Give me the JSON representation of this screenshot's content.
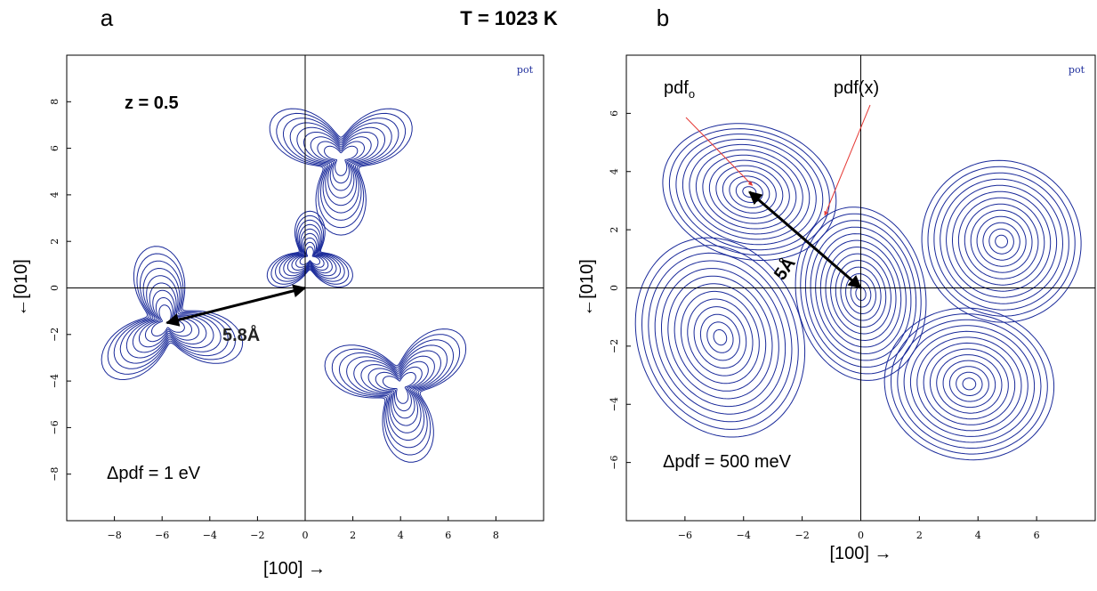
{
  "title": "T = 1023 K",
  "chart_data": [
    {
      "type": "contour",
      "panel": "a",
      "corner_label": "pot",
      "annotations": [
        "z = 0.5",
        "Δpdf = 1 eV",
        "5.8Å"
      ],
      "xlabel": "[100] →",
      "ylabel": "←[010]",
      "xlim": [
        -10,
        10
      ],
      "ylim": [
        -10,
        10
      ],
      "xticks": [
        {
          "value": -8,
          "label": "−8"
        },
        {
          "value": -6,
          "label": "−6"
        },
        {
          "value": -4,
          "label": "−4"
        },
        {
          "value": -2,
          "label": "−2"
        },
        0,
        2,
        4,
        6,
        8
      ],
      "yticks": [
        {
          "value": -8,
          "label": "−8"
        },
        {
          "value": -6,
          "label": "−6"
        },
        {
          "value": -4,
          "label": "−4"
        },
        {
          "value": -2,
          "label": "−2"
        },
        0,
        2,
        4,
        6,
        8
      ]
    },
    {
      "type": "contour",
      "panel": "b",
      "corner_label": "pot",
      "annotations": [
        "Δpdf = 500 meV",
        "5Å"
      ],
      "pdf_labels": [
        {
          "text": "pdf",
          "subscript": "o"
        },
        "pdf(x)"
      ],
      "xlabel": "[100] →",
      "ylabel": "←[010]",
      "xlim": [
        -8,
        8
      ],
      "ylim": [
        -8,
        8
      ],
      "xticks": [
        {
          "value": -6,
          "label": "−6"
        },
        {
          "value": -4,
          "label": "−4"
        },
        {
          "value": -2,
          "label": "−2"
        },
        0,
        2,
        4,
        6
      ],
      "yticks": [
        {
          "value": -6,
          "label": "−6"
        },
        {
          "value": -4,
          "label": "−4"
        },
        {
          "value": -2,
          "label": "−2"
        },
        0,
        2,
        4,
        6
      ]
    }
  ]
}
